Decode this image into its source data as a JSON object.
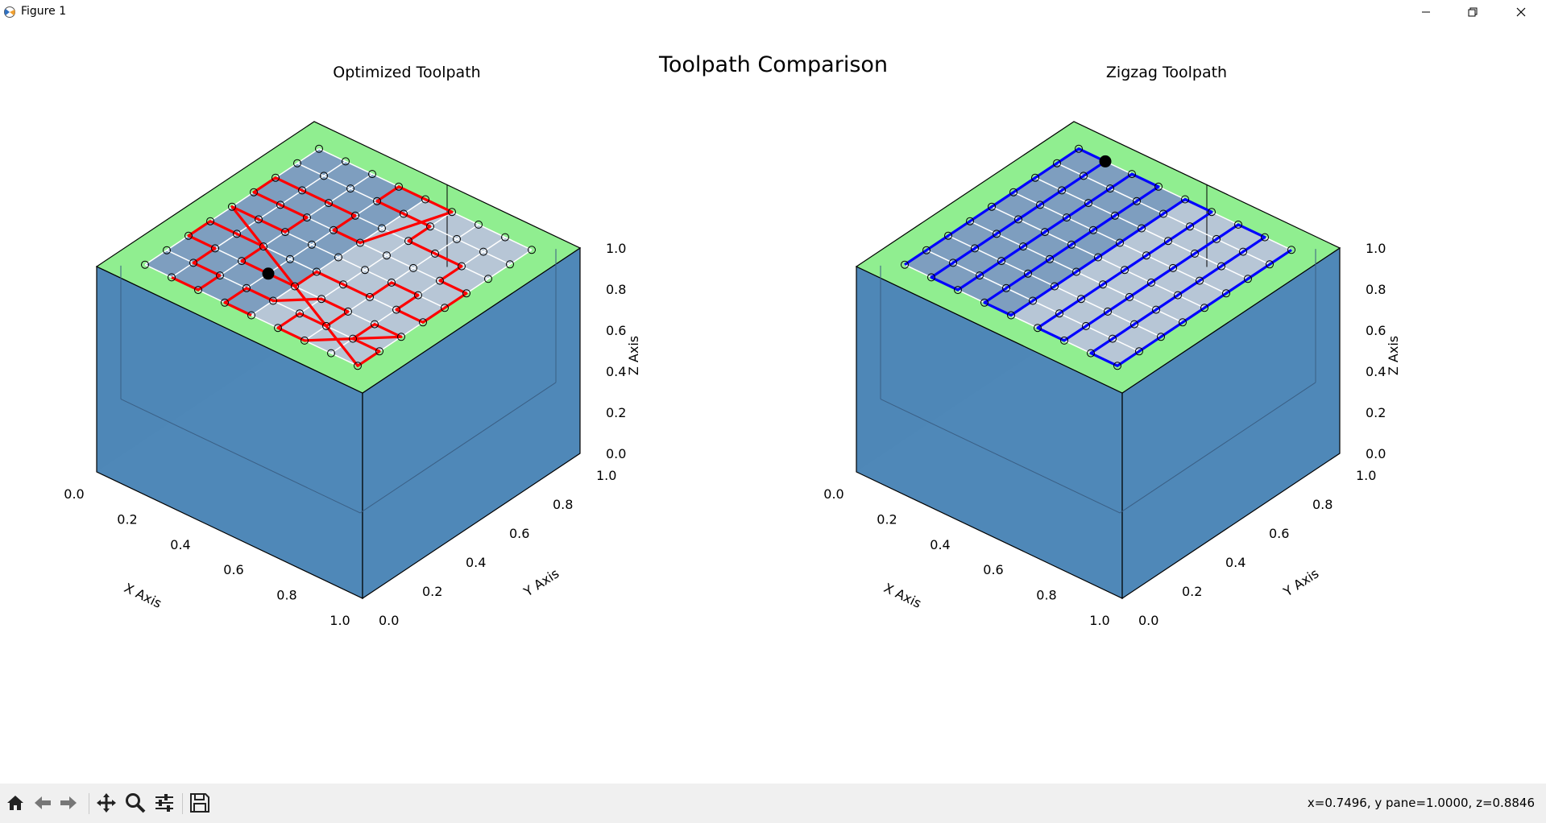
{
  "window": {
    "title": "Figure 1"
  },
  "figure": {
    "title": "Toolpath Comparison"
  },
  "chart_data": [
    {
      "type": "3d-surface-toolpath",
      "title": "Optimized Toolpath",
      "xlabel": "X Axis",
      "ylabel": "Y Axis",
      "zlabel": "Z Axis",
      "xlim": [
        0,
        1
      ],
      "ylim": [
        0,
        1
      ],
      "zlim": [
        0,
        1
      ],
      "x_ticks": [
        "0.0",
        "0.2",
        "0.4",
        "0.6",
        "0.8",
        "1.0"
      ],
      "y_ticks": [
        "0.0",
        "0.2",
        "0.4",
        "0.6",
        "0.8",
        "1.0"
      ],
      "z_ticks": [
        "0.0",
        "0.2",
        "0.4",
        "0.6",
        "0.8",
        "1.0"
      ],
      "grid_points": {
        "x": [
          0.1,
          0.2,
          0.3,
          0.4,
          0.5,
          0.6,
          0.7,
          0.8,
          0.9
        ],
        "y": [
          0.1,
          0.2,
          0.3,
          0.4,
          0.5,
          0.6,
          0.7,
          0.8,
          0.9
        ],
        "z": 1.0
      },
      "path_color": "#ff0000",
      "current_point": [
        0.4,
        0.3,
        1.0
      ],
      "path": [
        [
          0.2,
          0.1
        ],
        [
          0.3,
          0.1
        ],
        [
          0.3,
          0.2
        ],
        [
          0.2,
          0.2
        ],
        [
          0.2,
          0.3
        ],
        [
          0.1,
          0.3
        ],
        [
          0.1,
          0.4
        ],
        [
          0.2,
          0.4
        ],
        [
          0.3,
          0.4
        ],
        [
          0.3,
          0.3
        ],
        [
          0.4,
          0.3
        ],
        [
          0.5,
          0.3
        ],
        [
          0.5,
          0.4
        ],
        [
          0.6,
          0.4
        ],
        [
          0.7,
          0.4
        ],
        [
          0.7,
          0.5
        ],
        [
          0.8,
          0.5
        ],
        [
          0.8,
          0.4
        ],
        [
          0.9,
          0.4
        ],
        [
          0.9,
          0.5
        ],
        [
          0.9,
          0.6
        ],
        [
          0.8,
          0.6
        ],
        [
          0.8,
          0.7
        ],
        [
          0.7,
          0.7
        ],
        [
          0.6,
          0.7
        ],
        [
          0.6,
          0.8
        ],
        [
          0.5,
          0.8
        ],
        [
          0.4,
          0.8
        ],
        [
          0.4,
          0.9
        ],
        [
          0.5,
          0.9
        ],
        [
          0.6,
          0.9
        ],
        [
          0.5,
          0.6
        ],
        [
          0.4,
          0.6
        ],
        [
          0.4,
          0.7
        ],
        [
          0.3,
          0.7
        ],
        [
          0.2,
          0.7
        ],
        [
          0.1,
          0.7
        ],
        [
          0.1,
          0.6
        ],
        [
          0.2,
          0.6
        ],
        [
          0.3,
          0.6
        ],
        [
          0.3,
          0.5
        ],
        [
          0.2,
          0.5
        ],
        [
          0.1,
          0.5
        ],
        [
          0.9,
          0.1
        ],
        [
          0.9,
          0.2
        ],
        [
          0.8,
          0.2
        ],
        [
          0.8,
          0.3
        ],
        [
          0.9,
          0.3
        ],
        [
          0.7,
          0.1
        ],
        [
          0.6,
          0.1
        ],
        [
          0.6,
          0.2
        ],
        [
          0.7,
          0.2
        ],
        [
          0.7,
          0.3
        ],
        [
          0.6,
          0.3
        ],
        [
          0.5,
          0.2
        ],
        [
          0.4,
          0.2
        ],
        [
          0.4,
          0.1
        ],
        [
          0.5,
          0.1
        ]
      ],
      "surface_color": "#4682b4",
      "top_color": "#90ee90"
    },
    {
      "type": "3d-surface-toolpath",
      "title": "Zigzag Toolpath",
      "xlabel": "X Axis",
      "ylabel": "Y Axis",
      "zlabel": "Z Axis",
      "xlim": [
        0,
        1
      ],
      "ylim": [
        0,
        1
      ],
      "zlim": [
        0,
        1
      ],
      "x_ticks": [
        "0.0",
        "0.2",
        "0.4",
        "0.6",
        "0.8",
        "1.0"
      ],
      "y_ticks": [
        "0.0",
        "0.2",
        "0.4",
        "0.6",
        "0.8",
        "1.0"
      ],
      "z_ticks": [
        "0.0",
        "0.2",
        "0.4",
        "0.6",
        "0.8",
        "1.0"
      ],
      "grid_points": {
        "x": [
          0.1,
          0.2,
          0.3,
          0.4,
          0.5,
          0.6,
          0.7,
          0.8,
          0.9
        ],
        "y": [
          0.1,
          0.2,
          0.3,
          0.4,
          0.5,
          0.6,
          0.7,
          0.8,
          0.9
        ],
        "z": 1.0
      },
      "path_color": "#0000ff",
      "current_point": [
        0.2,
        0.9,
        1.0
      ],
      "path": [
        [
          0.1,
          0.1
        ],
        [
          0.1,
          0.9
        ],
        [
          0.2,
          0.9
        ],
        [
          0.2,
          0.1
        ],
        [
          0.3,
          0.1
        ],
        [
          0.3,
          0.9
        ],
        [
          0.4,
          0.9
        ],
        [
          0.4,
          0.1
        ],
        [
          0.5,
          0.1
        ],
        [
          0.5,
          0.9
        ],
        [
          0.6,
          0.9
        ],
        [
          0.6,
          0.1
        ],
        [
          0.7,
          0.1
        ],
        [
          0.7,
          0.9
        ],
        [
          0.8,
          0.9
        ],
        [
          0.8,
          0.1
        ],
        [
          0.9,
          0.1
        ],
        [
          0.9,
          0.9
        ]
      ],
      "surface_color": "#4682b4",
      "top_color": "#90ee90"
    }
  ],
  "toolbar": {
    "icons": [
      "home-icon",
      "back-icon",
      "forward-icon",
      "pan-icon",
      "zoom-icon",
      "configure-icon",
      "save-icon"
    ],
    "coords": "x=0.7496, y pane=1.0000, z=0.8846"
  }
}
